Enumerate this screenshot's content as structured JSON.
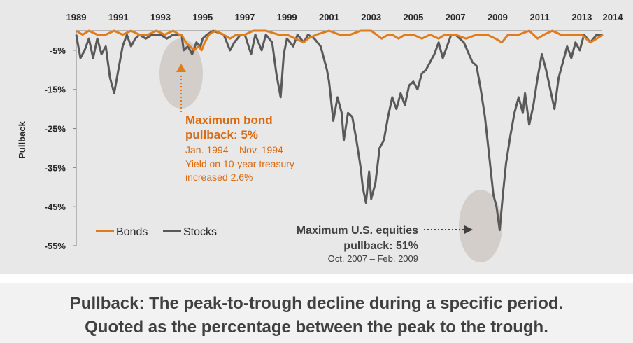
{
  "chart_data": {
    "type": "line",
    "ylabel": "Pullback",
    "x_ticks": [
      "1989",
      "1991",
      "1993",
      "1995",
      "1997",
      "1999",
      "2001",
      "2003",
      "2005",
      "2007",
      "2009",
      "2011",
      "2013",
      "2014"
    ],
    "y_ticks": [
      "-5%",
      "-15%",
      "-25%",
      "-35%",
      "-45%",
      "-55%"
    ],
    "ylim": [
      -55,
      0
    ],
    "xlim": [
      1989,
      2014
    ],
    "legend": [
      "Bonds",
      "Stocks"
    ],
    "legend_position": "bottom-left",
    "series": [
      {
        "name": "Stocks",
        "color": "#595959",
        "points": [
          [
            1989.0,
            -1
          ],
          [
            1989.2,
            -7
          ],
          [
            1989.4,
            -5
          ],
          [
            1989.6,
            -2
          ],
          [
            1989.8,
            -7
          ],
          [
            1990.0,
            -2
          ],
          [
            1990.2,
            -6
          ],
          [
            1990.4,
            -4
          ],
          [
            1990.6,
            -12
          ],
          [
            1990.8,
            -16
          ],
          [
            1991.0,
            -10
          ],
          [
            1991.2,
            -4
          ],
          [
            1991.4,
            -1
          ],
          [
            1991.6,
            -4
          ],
          [
            1991.8,
            -2
          ],
          [
            1992.0,
            -1
          ],
          [
            1992.3,
            -2
          ],
          [
            1992.6,
            -1
          ],
          [
            1993.0,
            -1
          ],
          [
            1993.3,
            -2
          ],
          [
            1993.6,
            -1
          ],
          [
            1994.0,
            -1
          ],
          [
            1994.1,
            -5
          ],
          [
            1994.3,
            -4
          ],
          [
            1994.5,
            -6
          ],
          [
            1994.7,
            -3
          ],
          [
            1994.9,
            -4
          ],
          [
            1995.0,
            -2
          ],
          [
            1995.2,
            -1
          ],
          [
            1995.5,
            0
          ],
          [
            1996.0,
            -1
          ],
          [
            1996.3,
            -5
          ],
          [
            1996.5,
            -3
          ],
          [
            1996.8,
            -1
          ],
          [
            1997.0,
            -1
          ],
          [
            1997.3,
            -6
          ],
          [
            1997.5,
            -1
          ],
          [
            1997.8,
            -5
          ],
          [
            1998.0,
            -1
          ],
          [
            1998.3,
            -3
          ],
          [
            1998.5,
            -11
          ],
          [
            1998.7,
            -17
          ],
          [
            1998.85,
            -6
          ],
          [
            1999.0,
            -2
          ],
          [
            1999.3,
            -4
          ],
          [
            1999.5,
            -1
          ],
          [
            1999.8,
            -3
          ],
          [
            2000.0,
            -1
          ],
          [
            2000.3,
            -2
          ],
          [
            2000.6,
            -4
          ],
          [
            2000.9,
            -10
          ],
          [
            2001.0,
            -13
          ],
          [
            2001.2,
            -23
          ],
          [
            2001.4,
            -17
          ],
          [
            2001.6,
            -21
          ],
          [
            2001.7,
            -28
          ],
          [
            2001.9,
            -21
          ],
          [
            2002.1,
            -22
          ],
          [
            2002.3,
            -28
          ],
          [
            2002.5,
            -35
          ],
          [
            2002.6,
            -40
          ],
          [
            2002.75,
            -44
          ],
          [
            2002.9,
            -36
          ],
          [
            2003.0,
            -43
          ],
          [
            2003.2,
            -39
          ],
          [
            2003.4,
            -30
          ],
          [
            2003.6,
            -28
          ],
          [
            2003.8,
            -22
          ],
          [
            2004.0,
            -17
          ],
          [
            2004.2,
            -20
          ],
          [
            2004.4,
            -16
          ],
          [
            2004.6,
            -19
          ],
          [
            2004.8,
            -14
          ],
          [
            2005.0,
            -13
          ],
          [
            2005.2,
            -15
          ],
          [
            2005.4,
            -11
          ],
          [
            2005.6,
            -10
          ],
          [
            2005.8,
            -8
          ],
          [
            2006.0,
            -6
          ],
          [
            2006.2,
            -3
          ],
          [
            2006.4,
            -7
          ],
          [
            2006.6,
            -4
          ],
          [
            2006.8,
            -1
          ],
          [
            2007.0,
            -1
          ],
          [
            2007.4,
            -3
          ],
          [
            2007.8,
            -8
          ],
          [
            2008.0,
            -9
          ],
          [
            2008.2,
            -15
          ],
          [
            2008.4,
            -22
          ],
          [
            2008.6,
            -32
          ],
          [
            2008.8,
            -42
          ],
          [
            2008.95,
            -45
          ],
          [
            2009.1,
            -51
          ],
          [
            2009.25,
            -42
          ],
          [
            2009.4,
            -34
          ],
          [
            2009.6,
            -27
          ],
          [
            2009.8,
            -21
          ],
          [
            2010.0,
            -17
          ],
          [
            2010.2,
            -21
          ],
          [
            2010.3,
            -16
          ],
          [
            2010.5,
            -24
          ],
          [
            2010.7,
            -19
          ],
          [
            2010.9,
            -12
          ],
          [
            2011.1,
            -6
          ],
          [
            2011.3,
            -10
          ],
          [
            2011.5,
            -15
          ],
          [
            2011.7,
            -20
          ],
          [
            2011.9,
            -12
          ],
          [
            2012.1,
            -8
          ],
          [
            2012.3,
            -4
          ],
          [
            2012.5,
            -7
          ],
          [
            2012.7,
            -3
          ],
          [
            2012.9,
            -5
          ],
          [
            2013.1,
            -1
          ],
          [
            2013.4,
            -3
          ],
          [
            2013.7,
            -1
          ],
          [
            2014.0,
            -1
          ]
        ]
      },
      {
        "name": "Bonds",
        "color": "#e07c1a",
        "points": [
          [
            1989.0,
            0
          ],
          [
            1989.3,
            -1
          ],
          [
            1989.6,
            0
          ],
          [
            1990.0,
            -1
          ],
          [
            1990.4,
            -1
          ],
          [
            1990.8,
            0
          ],
          [
            1991.2,
            -1
          ],
          [
            1991.6,
            0
          ],
          [
            1992.0,
            -1
          ],
          [
            1992.4,
            -1
          ],
          [
            1992.8,
            0
          ],
          [
            1993.2,
            -1
          ],
          [
            1993.6,
            0
          ],
          [
            1993.9,
            -1
          ],
          [
            1994.0,
            -1
          ],
          [
            1994.2,
            -3
          ],
          [
            1994.4,
            -4
          ],
          [
            1994.6,
            -5
          ],
          [
            1994.8,
            -4
          ],
          [
            1994.95,
            -5
          ],
          [
            1995.1,
            -3
          ],
          [
            1995.3,
            -1
          ],
          [
            1995.6,
            0
          ],
          [
            1996.0,
            -1
          ],
          [
            1996.3,
            -2
          ],
          [
            1996.6,
            -1
          ],
          [
            1997.0,
            -1
          ],
          [
            1997.4,
            0
          ],
          [
            1998.0,
            0
          ],
          [
            1998.6,
            -1
          ],
          [
            1999.0,
            -1
          ],
          [
            1999.4,
            -2
          ],
          [
            1999.8,
            -3
          ],
          [
            2000.0,
            -2
          ],
          [
            2000.4,
            -1
          ],
          [
            2001.0,
            0
          ],
          [
            2001.5,
            -1
          ],
          [
            2002.0,
            -1
          ],
          [
            2002.5,
            0
          ],
          [
            2003.0,
            0
          ],
          [
            2003.5,
            -2
          ],
          [
            2003.8,
            -1
          ],
          [
            2004.0,
            -1
          ],
          [
            2004.3,
            -2
          ],
          [
            2004.6,
            -1
          ],
          [
            2005.0,
            -1
          ],
          [
            2005.4,
            -2
          ],
          [
            2005.8,
            -1
          ],
          [
            2006.2,
            -2
          ],
          [
            2006.5,
            -1
          ],
          [
            2007.0,
            -1
          ],
          [
            2007.5,
            -2
          ],
          [
            2008.0,
            -1
          ],
          [
            2008.5,
            -1
          ],
          [
            2008.9,
            -2
          ],
          [
            2009.2,
            -3
          ],
          [
            2009.5,
            -1
          ],
          [
            2010.0,
            -1
          ],
          [
            2010.5,
            0
          ],
          [
            2010.9,
            -2
          ],
          [
            2011.2,
            -1
          ],
          [
            2011.6,
            0
          ],
          [
            2012.0,
            -1
          ],
          [
            2012.5,
            -1
          ],
          [
            2013.0,
            -1
          ],
          [
            2013.4,
            -3
          ],
          [
            2013.7,
            -2
          ],
          [
            2014.0,
            -1
          ]
        ]
      }
    ],
    "annotations": {
      "bond": {
        "title_line1": "Maximum bond",
        "title_line2": "pullback: 5%",
        "detail_line1": "Jan. 1994 – Nov. 1994",
        "detail_line2": "Yield on 10-year treasury",
        "detail_line3": "increased 2.6%"
      },
      "equity": {
        "title_line1": "Maximum U.S. equities",
        "title_line2": "pullback: 51%",
        "detail_line1": "Oct. 2007 – Feb. 2009"
      }
    }
  },
  "caption": {
    "line1": "Pullback: The peak-to-trough decline during a specific period.",
    "line2": "Quoted as the percentage between the peak to the trough."
  }
}
